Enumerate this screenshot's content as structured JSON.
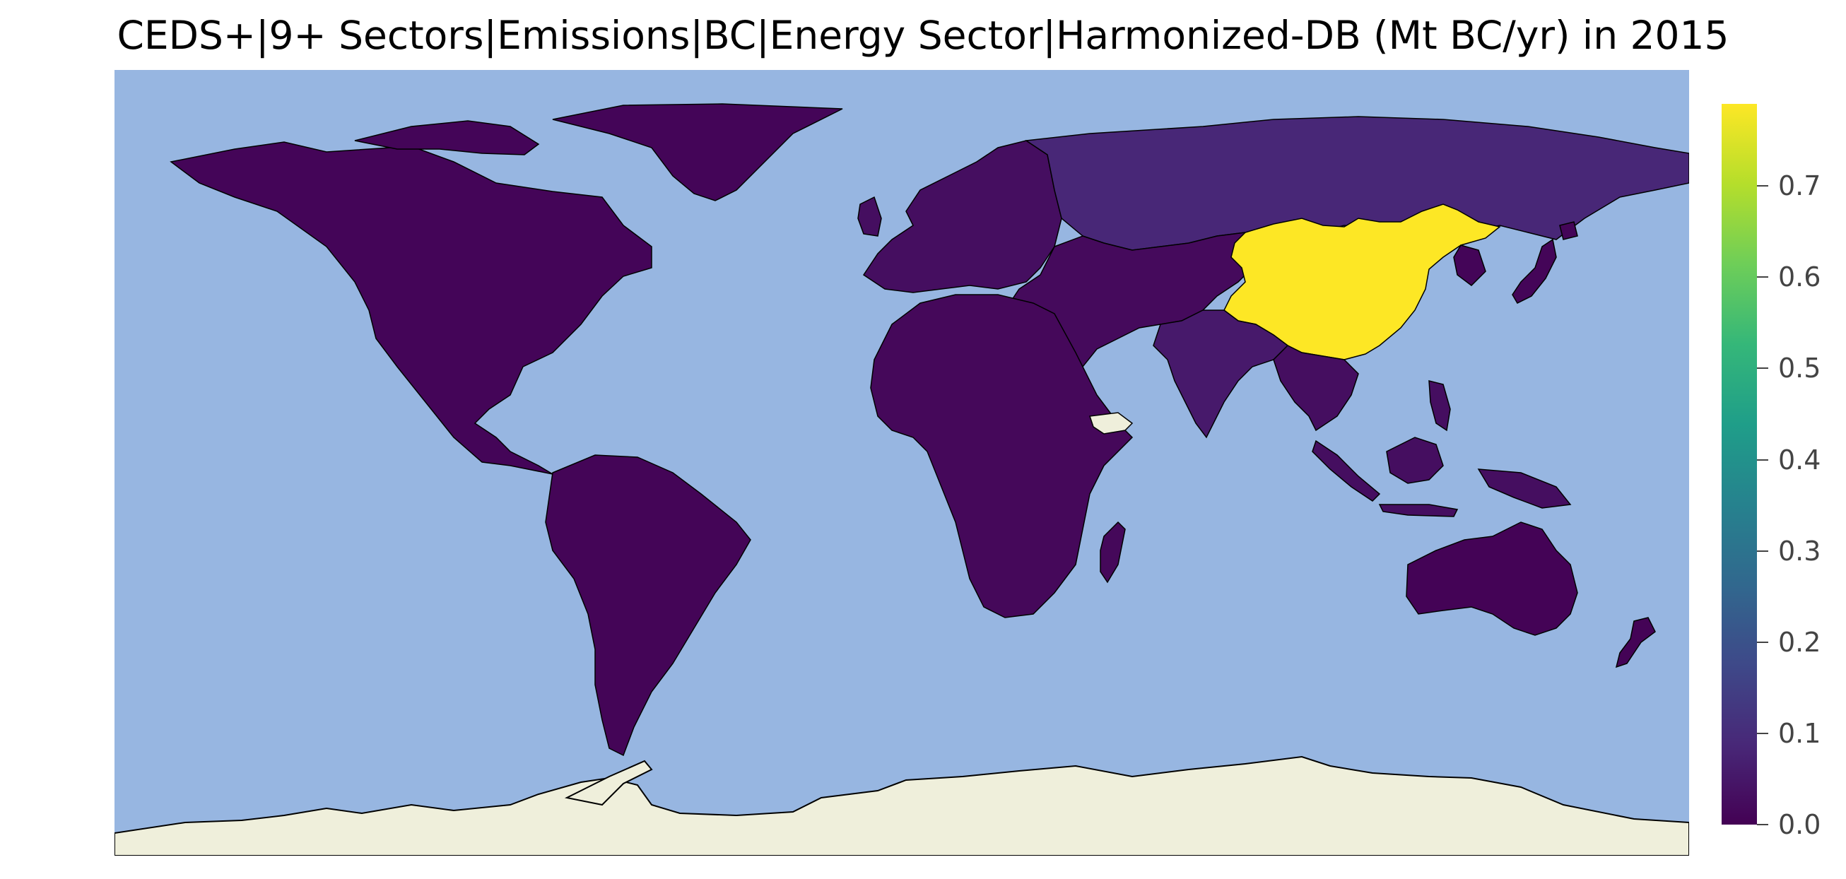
{
  "title": "CEDS+|9+ Sectors|Emissions|BC|Energy Sector|Harmonized-DB (Mt BC/yr) in 2015",
  "map": {
    "projection": "plate-carree",
    "ocean_color": "#97b6e1",
    "nodata_color": "#efefdb",
    "border_color": "#000000",
    "regions": [
      {
        "name": "China",
        "value": 0.79
      },
      {
        "name": "Russia",
        "value": 0.085
      },
      {
        "name": "Central Asia",
        "value": 0.02
      },
      {
        "name": "India",
        "value": 0.055
      },
      {
        "name": "Southeast Asia",
        "value": 0.03
      },
      {
        "name": "North America",
        "value": 0.01
      },
      {
        "name": "Europe",
        "value": 0.03
      },
      {
        "name": "Africa",
        "value": 0.015
      },
      {
        "name": "South America",
        "value": 0.008
      },
      {
        "name": "Australia",
        "value": 0.005
      },
      {
        "name": "Japan",
        "value": 0.01
      },
      {
        "name": "Antarctica",
        "value": null
      }
    ]
  },
  "colorbar": {
    "min": 0.0,
    "max": 0.79,
    "colormap": "viridis",
    "stops": [
      "#440154",
      "#482878",
      "#3e4989",
      "#31688e",
      "#26828e",
      "#1f9e89",
      "#35b779",
      "#6ece58",
      "#b5de2b",
      "#fde725"
    ],
    "ticks": [
      0.0,
      0.1,
      0.2,
      0.3,
      0.4,
      0.5,
      0.6,
      0.7
    ],
    "tick_labels": [
      "0.0",
      "0.1",
      "0.2",
      "0.3",
      "0.4",
      "0.5",
      "0.6",
      "0.7"
    ]
  }
}
